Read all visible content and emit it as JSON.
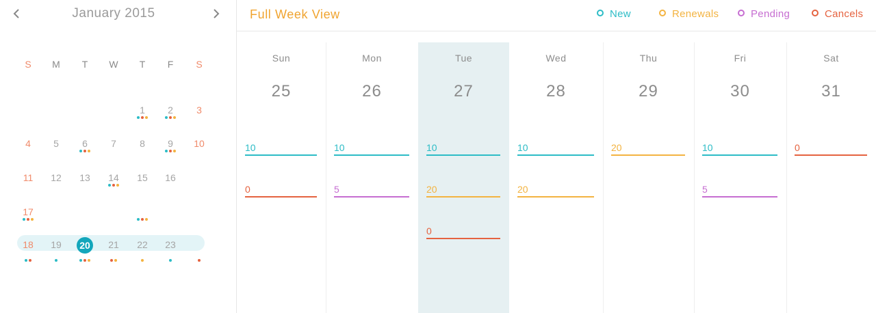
{
  "colors": {
    "new": "#2cbcc6",
    "renewals": "#f3b340",
    "pending": "#c66dd1",
    "cancels": "#e5623f"
  },
  "mini_calendar": {
    "title": "January 2015",
    "prev_icon": "chevron-left-icon",
    "next_icon": "chevron-right-icon",
    "weekdays": [
      "S",
      "M",
      "T",
      "W",
      "T",
      "F",
      "S"
    ],
    "weeks": [
      [
        {
          "d": ""
        },
        {
          "d": ""
        },
        {
          "d": ""
        },
        {
          "d": ""
        },
        {
          "d": "1",
          "dots": [
            "new",
            "cancels",
            "renewals"
          ]
        },
        {
          "d": "2",
          "dots": [
            "new",
            "cancels",
            "renewals"
          ]
        },
        {
          "d": "3"
        }
      ],
      [
        {
          "d": "4"
        },
        {
          "d": "5"
        },
        {
          "d": "6",
          "dots": [
            "new",
            "cancels",
            "renewals"
          ]
        },
        {
          "d": "7"
        },
        {
          "d": "8"
        },
        {
          "d": "9",
          "dots": [
            "new",
            "cancels",
            "renewals"
          ]
        },
        {
          "d": "10"
        }
      ],
      [
        {
          "d": "11"
        },
        {
          "d": "12"
        },
        {
          "d": "13"
        },
        {
          "d": "14",
          "dots": [
            "new",
            "cancels",
            "renewals"
          ]
        },
        {
          "d": "15"
        },
        {
          "d": "16"
        },
        {
          "d": ""
        }
      ],
      [
        {
          "d": "17",
          "dots": [
            "new",
            "cancels",
            "renewals"
          ]
        },
        {
          "d": ""
        },
        {
          "d": ""
        },
        {
          "d": ""
        },
        {
          "d": "",
          "dots": [
            "new",
            "cancels",
            "renewals"
          ]
        },
        {
          "d": ""
        },
        {
          "d": ""
        }
      ],
      [
        {
          "d": "18",
          "dots": [
            "new",
            "cancels"
          ]
        },
        {
          "d": "19",
          "dots": [
            "new"
          ]
        },
        {
          "d": "20",
          "selected": true,
          "dots": [
            "new",
            "cancels",
            "renewals"
          ]
        },
        {
          "d": "21",
          "dots": [
            "cancels",
            "renewals"
          ]
        },
        {
          "d": "22",
          "dots": [
            "renewals"
          ]
        },
        {
          "d": "23",
          "dots": [
            "new"
          ]
        },
        {
          "d": "",
          "dots": [
            "cancels"
          ]
        }
      ]
    ]
  },
  "header": {
    "title": "Full Week View",
    "legend": [
      {
        "label": "New",
        "key": "new"
      },
      {
        "label": "Renewals",
        "key": "renewals"
      },
      {
        "label": "Pending",
        "key": "pending"
      },
      {
        "label": "Cancels",
        "key": "cancels"
      }
    ]
  },
  "week": {
    "days": [
      {
        "name": "Sun",
        "num": "25",
        "entries": [
          {
            "value": "10",
            "type": "new"
          },
          {
            "value": "0",
            "type": "cancels"
          }
        ]
      },
      {
        "name": "Mon",
        "num": "26",
        "entries": [
          {
            "value": "10",
            "type": "new"
          },
          {
            "value": "5",
            "type": "pending"
          }
        ]
      },
      {
        "name": "Tue",
        "num": "27",
        "today": true,
        "entries": [
          {
            "value": "10",
            "type": "new"
          },
          {
            "value": "20",
            "type": "renewals"
          },
          {
            "value": "0",
            "type": "cancels"
          }
        ]
      },
      {
        "name": "Wed",
        "num": "28",
        "entries": [
          {
            "value": "10",
            "type": "new"
          },
          {
            "value": "20",
            "type": "renewals"
          }
        ]
      },
      {
        "name": "Thu",
        "num": "29",
        "entries": [
          {
            "value": "20",
            "type": "renewals"
          }
        ]
      },
      {
        "name": "Fri",
        "num": "30",
        "entries": [
          {
            "value": "10",
            "type": "new"
          },
          {
            "value": "5",
            "type": "pending"
          }
        ]
      },
      {
        "name": "Sat",
        "num": "31",
        "entries": [
          {
            "value": "0",
            "type": "cancels"
          }
        ]
      }
    ]
  }
}
